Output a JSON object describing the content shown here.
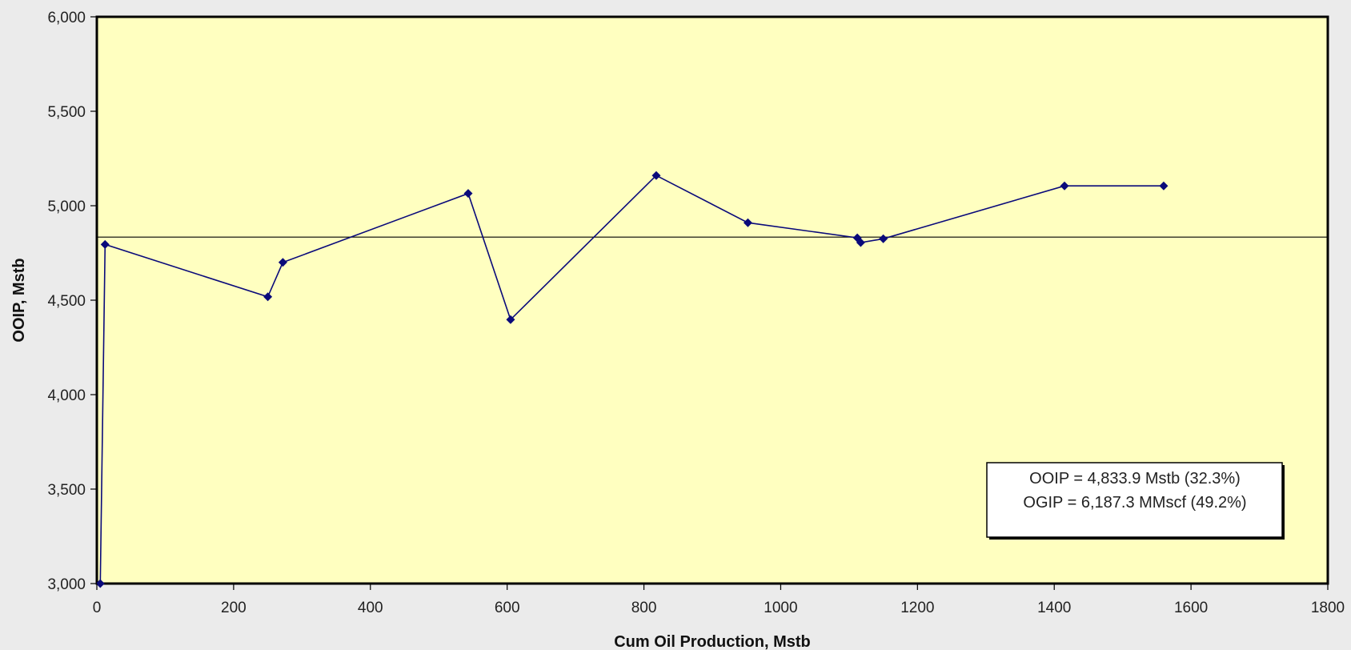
{
  "chart_data": {
    "type": "line",
    "title": "",
    "xlabel": "Cum Oil Production, Mstb",
    "ylabel": "OOIP, Mstb",
    "xlim": [
      0,
      1800
    ],
    "ylim": [
      3000,
      6000
    ],
    "x_ticks": [
      0,
      200,
      400,
      600,
      800,
      1000,
      1200,
      1400,
      1600,
      1800
    ],
    "y_ticks": [
      3000,
      3500,
      4000,
      4500,
      5000,
      5500,
      6000
    ],
    "x_tick_labels": [
      "0",
      "200",
      "400",
      "600",
      "800",
      "1000",
      "1200",
      "1400",
      "1600",
      "1800"
    ],
    "y_tick_labels": [
      "3,000",
      "3,500",
      "4,000",
      "4,500",
      "5,000",
      "5,500",
      "6,000"
    ],
    "grid": false,
    "plot_background": "#ffffc0",
    "series_color": "#0a0a7a",
    "series": [
      {
        "x": [
          5,
          12,
          250,
          272,
          543,
          605,
          818,
          952,
          1112,
          1117,
          1150,
          1415,
          1560
        ],
        "y": [
          3000,
          4795,
          4518,
          4700,
          5065,
          4397,
          5160,
          4910,
          4830,
          4805,
          4825,
          5105,
          5105
        ]
      }
    ],
    "reference_line": {
      "y": 4833.9
    },
    "annotation": {
      "lines": [
        "OOIP = 4,833.9 Mstb (32.3%)",
        "OGIP = 6,187.3 MMscf (49.2%)"
      ],
      "placement": "bottom-right"
    }
  }
}
